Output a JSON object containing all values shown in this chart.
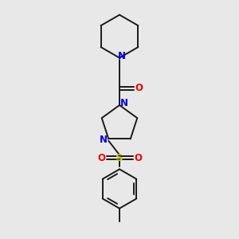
{
  "bg_color": "#e8e8e8",
  "bond_color": "#1a1a1a",
  "nitrogen_color": "#0000ff",
  "oxygen_color": "#ff0000",
  "sulfur_color": "#cccc00",
  "font_size": 8.5,
  "line_width": 1.4,
  "figsize": [
    3.0,
    3.0
  ],
  "dpi": 100,
  "xlim": [
    0.25,
    0.75
  ],
  "ylim": [
    0.02,
    1.02
  ]
}
